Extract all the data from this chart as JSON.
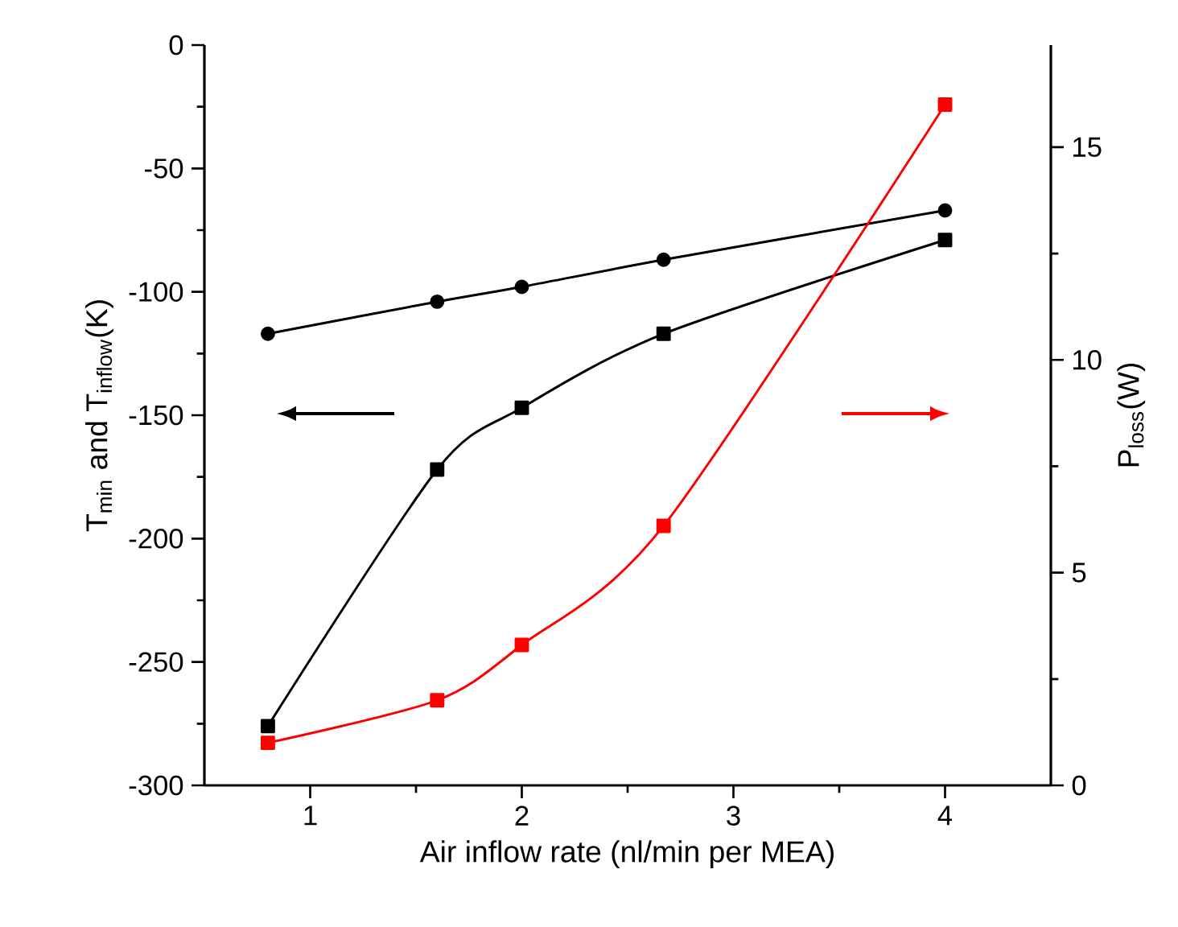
{
  "chart_data": {
    "type": "line",
    "xlabel": "Air inflow rate (nl/min per MEA)",
    "ylabel": "T$_{min}$ and T$_{inflow}$(K)",
    "y2label": "P$_{loss}$(W)",
    "x": [
      0.8,
      1.6,
      2,
      2.67,
      4
    ],
    "xlim": [
      0.5,
      4.5
    ],
    "xticks": [
      1,
      2,
      3,
      4
    ],
    "ylim": [
      -300,
      0
    ],
    "yticks": [
      -300,
      -250,
      -200,
      -150,
      -100,
      -50,
      0
    ],
    "y2lim": [
      0,
      17.4
    ],
    "y2ticks": [
      0,
      5,
      10,
      15
    ],
    "line_style": "solid",
    "series": [
      {
        "color": "#000000",
        "marker": "circle",
        "values": [
          -117,
          -104,
          -98,
          -87,
          -67
        ]
      },
      {
        "color": "#000000",
        "marker": "square",
        "values": [
          -276,
          -172,
          -147,
          -117,
          -79
        ]
      },
      {
        "color": "#ff0000",
        "marker": "square",
        "axis": "y2",
        "values": [
          1.0,
          2.0,
          3.3,
          6.1,
          16.0
        ]
      }
    ]
  }
}
